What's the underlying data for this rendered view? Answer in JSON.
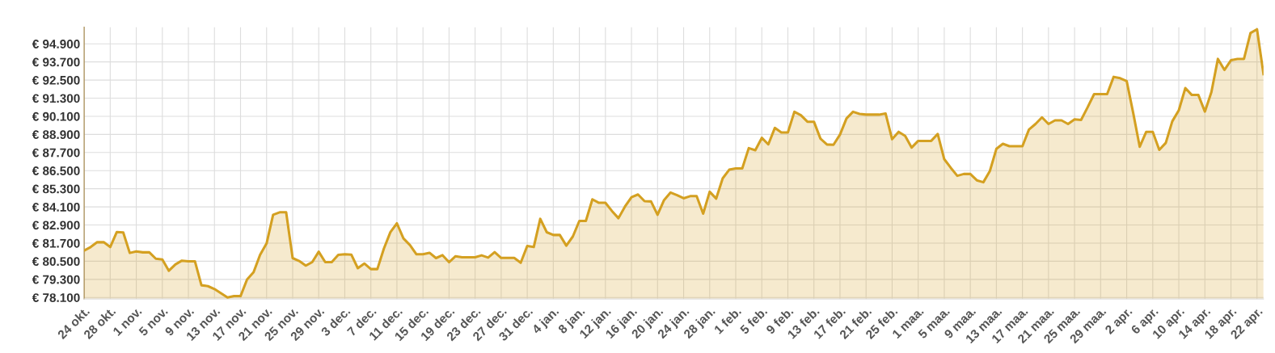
{
  "chart_data": {
    "type": "area",
    "categories": [
      "24 okt.",
      null,
      null,
      null,
      "28 okt.",
      null,
      null,
      null,
      "1 nov.",
      null,
      null,
      null,
      "5 nov.",
      null,
      null,
      null,
      "9 nov.",
      null,
      null,
      null,
      "13 nov.",
      null,
      null,
      null,
      "17 nov.",
      null,
      null,
      null,
      "21 nov.",
      null,
      null,
      null,
      "25 nov.",
      null,
      null,
      null,
      "29 nov.",
      null,
      null,
      null,
      "3 dec.",
      null,
      null,
      null,
      "7 dec.",
      null,
      null,
      null,
      "11 dec.",
      null,
      null,
      null,
      "15 dec.",
      null,
      null,
      null,
      "19 dec.",
      null,
      null,
      null,
      "23 dec.",
      null,
      null,
      null,
      "27 dec.",
      null,
      null,
      null,
      "31 dec.",
      null,
      null,
      null,
      "4 jan.",
      null,
      null,
      null,
      "8 jan.",
      null,
      null,
      null,
      "12 jan.",
      null,
      null,
      null,
      "16 jan.",
      null,
      null,
      null,
      "20 jan.",
      null,
      null,
      null,
      "24 jan.",
      null,
      null,
      null,
      "28 jan.",
      null,
      null,
      null,
      "1 feb.",
      null,
      null,
      null,
      "5 feb.",
      null,
      null,
      null,
      "9 feb.",
      null,
      null,
      null,
      "13 feb.",
      null,
      null,
      null,
      "17 feb.",
      null,
      null,
      null,
      "21 feb.",
      null,
      null,
      null,
      "25 feb.",
      null,
      null,
      null,
      "1 maa.",
      null,
      null,
      null,
      "5 maa.",
      null,
      null,
      null,
      "9 maa.",
      null,
      null,
      null,
      "13 maa.",
      null,
      null,
      null,
      "17 maa.",
      null,
      null,
      null,
      "21 maa.",
      null,
      null,
      null,
      "25 maa.",
      null,
      null,
      null,
      "29 maa.",
      null,
      null,
      null,
      "2 apr.",
      null,
      null,
      null,
      "6 apr.",
      null,
      null,
      null,
      "10 apr.",
      null,
      null,
      null,
      "14 apr.",
      null,
      null,
      null,
      "18 apr.",
      null,
      null,
      null,
      "22 apr.",
      null
    ],
    "series": [
      {
        "color": "#d4a021",
        "values": [
          81200,
          81440,
          81760,
          81760,
          81440,
          82430,
          82410,
          81050,
          81150,
          81090,
          81090,
          80670,
          80620,
          79870,
          80290,
          80540,
          80500,
          80500,
          78910,
          78850,
          78660,
          78380,
          78100,
          78190,
          78190,
          79290,
          79770,
          80920,
          81680,
          83580,
          83740,
          83740,
          80710,
          80520,
          80210,
          80440,
          81130,
          80440,
          80440,
          80920,
          80960,
          80940,
          80040,
          80350,
          79980,
          79980,
          81340,
          82430,
          83010,
          82010,
          81570,
          80960,
          80960,
          81060,
          80710,
          80900,
          80440,
          80830,
          80760,
          80760,
          80760,
          80890,
          80740,
          81100,
          80720,
          80720,
          80720,
          80400,
          81510,
          81440,
          83310,
          82420,
          82240,
          82240,
          81530,
          82140,
          83170,
          83170,
          84600,
          84370,
          84370,
          83830,
          83350,
          84120,
          84740,
          84920,
          84480,
          84460,
          83580,
          84550,
          85050,
          84870,
          84670,
          84810,
          84810,
          83650,
          85100,
          84650,
          85990,
          86560,
          86650,
          86650,
          87990,
          87850,
          88670,
          88240,
          89330,
          89030,
          89030,
          90400,
          90170,
          89740,
          89740,
          88620,
          88230,
          88210,
          88890,
          89960,
          90400,
          90260,
          90210,
          90210,
          90210,
          90280,
          88580,
          89070,
          88800,
          88030,
          88470,
          88470,
          88470,
          88930,
          87260,
          86690,
          86160,
          86280,
          86280,
          85860,
          85730,
          86470,
          87940,
          88280,
          88120,
          88120,
          88120,
          89220,
          89590,
          90030,
          89590,
          89830,
          89830,
          89590,
          89900,
          89860,
          90690,
          91570,
          91570,
          91570,
          92710,
          92620,
          92430,
          90320,
          88080,
          89070,
          89070,
          87880,
          88340,
          89770,
          90500,
          91970,
          91510,
          91510,
          90410,
          91700,
          93900,
          93170,
          93810,
          93900,
          93900,
          95610,
          95860,
          92890
        ]
      }
    ],
    "ylim": [
      78000,
      96000
    ],
    "yticks": [
      {
        "value": 78100,
        "label": "€ 78.100"
      },
      {
        "value": 79300,
        "label": "€ 79.300"
      },
      {
        "value": 80500,
        "label": "€ 80.500"
      },
      {
        "value": 81700,
        "label": "€ 81.700"
      },
      {
        "value": 82900,
        "label": "€ 82.900"
      },
      {
        "value": 84100,
        "label": "€ 84.100"
      },
      {
        "value": 85300,
        "label": "€ 85.300"
      },
      {
        "value": 86500,
        "label": "€ 86.500"
      },
      {
        "value": 87700,
        "label": "€ 87.700"
      },
      {
        "value": 88900,
        "label": "€ 88.900"
      },
      {
        "value": 90100,
        "label": "€ 90.100"
      },
      {
        "value": 91300,
        "label": "€ 91.300"
      },
      {
        "value": 92500,
        "label": "€ 92.500"
      },
      {
        "value": 93700,
        "label": "€ 93.700"
      },
      {
        "value": 94900,
        "label": "€ 94.900"
      }
    ],
    "grid": true,
    "legend": false,
    "marker": "none",
    "line_style": "solid"
  }
}
